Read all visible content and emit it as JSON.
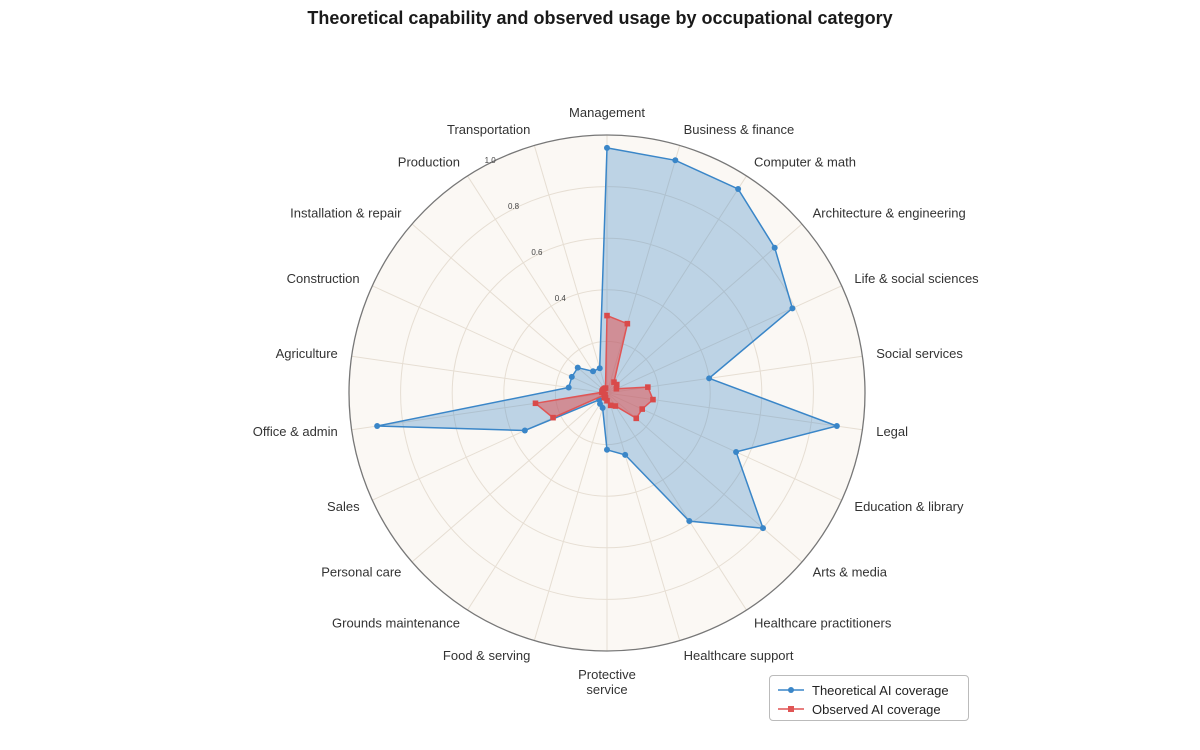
{
  "chart_data": {
    "type": "radar",
    "title": "Theoretical capability and observed usage by occupational category",
    "categories": [
      "Management",
      "Business & finance",
      "Computer & math",
      "Architecture & engineering",
      "Life & social sciences",
      "Social services",
      "Legal",
      "Education & library",
      "Arts & media",
      "Healthcare practitioners",
      "Healthcare support",
      "Protective service",
      "Food & serving",
      "Grounds maintenance",
      "Personal care",
      "Sales",
      "Office & admin",
      "Agriculture",
      "Construction",
      "Installation & repair",
      "Production",
      "Transportation"
    ],
    "series": [
      {
        "name": "Theoretical AI coverage",
        "color": "#3a86c8",
        "values": [
          0.95,
          0.94,
          0.94,
          0.86,
          0.79,
          0.4,
          0.9,
          0.55,
          0.8,
          0.59,
          0.25,
          0.22,
          0.06,
          0.05,
          0.04,
          0.35,
          0.9,
          0.15,
          0.15,
          0.15,
          0.1,
          0.1
        ]
      },
      {
        "name": "Observed AI coverage",
        "color": "#e05555",
        "values": [
          0.3,
          0.28,
          0.05,
          0.05,
          0.04,
          0.16,
          0.18,
          0.15,
          0.15,
          0.06,
          0.05,
          0.03,
          0.02,
          0.02,
          0.01,
          0.23,
          0.28,
          0.02,
          0.02,
          0.02,
          0.02,
          0.02
        ]
      }
    ],
    "rlim": [
      0,
      1.0
    ],
    "ticks": [
      "0.4",
      "0.6",
      "0.8",
      "1.0"
    ],
    "legend_position": "bottom-right",
    "grid": true
  }
}
